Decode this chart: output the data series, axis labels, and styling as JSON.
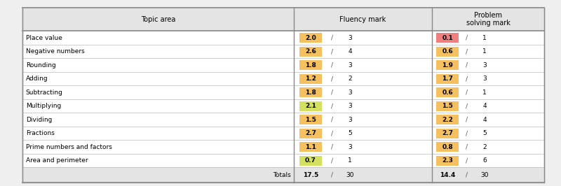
{
  "topics": [
    "Place value",
    "Negative numbers",
    "Rounding",
    "Adding",
    "Subtracting",
    "Multiplying",
    "Dividing",
    "Fractions",
    "Prime numbers and factors",
    "Area and perimeter"
  ],
  "fluency_scores": [
    2.0,
    2.6,
    1.8,
    1.2,
    1.8,
    2.1,
    1.5,
    2.7,
    1.1,
    0.7
  ],
  "fluency_totals": [
    3,
    4,
    3,
    2,
    3,
    3,
    3,
    5,
    3,
    1
  ],
  "problem_scores": [
    0.1,
    0.6,
    1.9,
    1.7,
    0.6,
    1.5,
    2.2,
    2.7,
    0.8,
    2.3
  ],
  "problem_totals": [
    1,
    1,
    3,
    3,
    1,
    4,
    4,
    5,
    2,
    6
  ],
  "fluency_total_sum": "17.5",
  "fluency_total_max": "30",
  "problem_total_sum": "14.4",
  "problem_total_max": "30",
  "col_header_topic": "Topic area",
  "col_header_fluency": "Fluency mark",
  "col_header_problem": "Problem\nsolving mark",
  "totals_label": "Totals",
  "background_color": "#efefef",
  "table_bg": "#ffffff",
  "header_bg": "#e4e4e4",
  "outer_border": "#aaaaaa"
}
